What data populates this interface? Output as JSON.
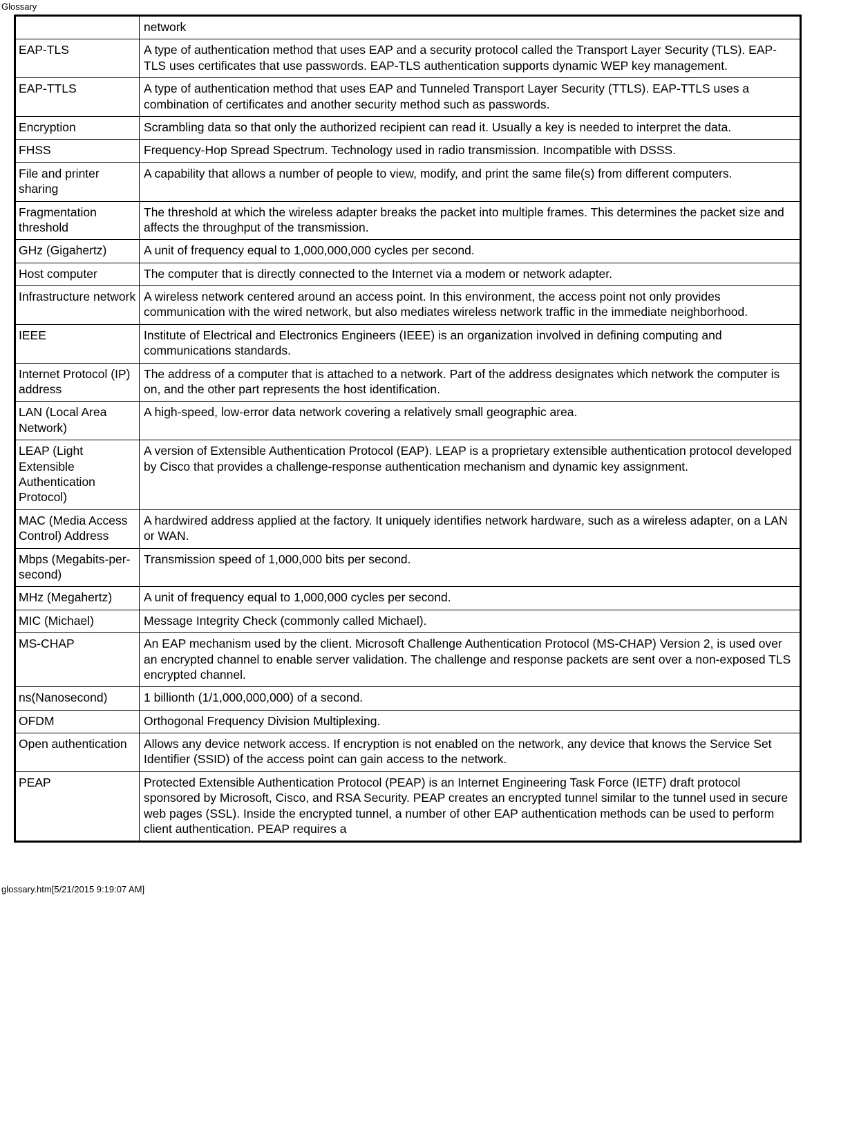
{
  "page": {
    "title": "Glossary",
    "footer": "glossary.htm[5/21/2015 9:19:07 AM]"
  },
  "table": {
    "header_row": {
      "term": "",
      "definition": "network"
    },
    "rows": [
      {
        "term": "EAP-TLS",
        "definition": "A type of authentication method that uses EAP and a security protocol called the Transport Layer Security (TLS). EAP-TLS uses certificates that use passwords. EAP-TLS authentication supports dynamic WEP key management."
      },
      {
        "term": "EAP-TTLS",
        "definition": "A type of authentication method that uses EAP and Tunneled Transport Layer Security (TTLS). EAP-TTLS uses a combination of certificates and another security method such as passwords."
      },
      {
        "term": "Encryption",
        "definition": "Scrambling data so that only the authorized recipient can read it. Usually a key is needed to interpret the data."
      },
      {
        "term": "FHSS",
        "definition": "Frequency-Hop Spread Spectrum. Technology used in radio transmission. Incompatible with DSSS."
      },
      {
        "term": "File and printer sharing",
        "definition": "A capability that allows a number of people to view, modify, and print the same file(s) from different computers."
      },
      {
        "term": "Fragmentation threshold",
        "definition": "The threshold at which the wireless adapter breaks the packet into multiple frames. This determines the packet size and affects the throughput of the transmission."
      },
      {
        "term": "GHz (Gigahertz)",
        "definition": "A unit of frequency equal to 1,000,000,000 cycles per second."
      },
      {
        "term": "Host computer",
        "definition": "The computer that is directly connected to the Internet via a modem or network adapter."
      },
      {
        "term": "Infrastructure network",
        "definition": "A wireless network centered around an access point. In this environment, the access point not only provides communication with the wired network, but also mediates wireless network traffic in the immediate neighborhood."
      },
      {
        "term": "IEEE",
        "definition": "Institute of Electrical and Electronics Engineers (IEEE) is an organization involved in defining computing and communications standards."
      },
      {
        "term": "Internet Protocol (IP) address",
        "definition": "The address of a computer that is attached to a network. Part of the address designates which network the computer is on, and the other part represents the host identification."
      },
      {
        "term": "LAN (Local Area Network)",
        "definition": "A high-speed, low-error data network covering a relatively small geographic area."
      },
      {
        "term": "LEAP (Light Extensible Authentication Protocol)",
        "definition": "A version of Extensible Authentication Protocol (EAP). LEAP is a proprietary extensible authentication protocol developed by Cisco that provides a challenge-response authentication mechanism and dynamic key assignment."
      },
      {
        "term": "MAC (Media Access Control) Address",
        "definition": "A hardwired address applied at the factory. It uniquely identifies network hardware, such as a wireless adapter, on a LAN or WAN."
      },
      {
        "term": "Mbps (Megabits-per-second)",
        "definition": "Transmission speed of 1,000,000 bits per second."
      },
      {
        "term": "MHz (Megahertz)",
        "definition": "A unit of frequency equal to 1,000,000 cycles per second."
      },
      {
        "term": "MIC (Michael)",
        "definition": "Message Integrity Check (commonly called Michael)."
      },
      {
        "term": "MS-CHAP",
        "definition": "An EAP mechanism used by the client. Microsoft Challenge Authentication Protocol (MS-CHAP) Version 2, is used over an encrypted channel to enable server validation. The challenge and response packets are sent over a non-exposed TLS encrypted channel."
      },
      {
        "term": "ns(Nanosecond)",
        "definition": "1 billionth (1/1,000,000,000) of a second."
      },
      {
        "term": "OFDM",
        "definition": "Orthogonal Frequency Division Multiplexing."
      },
      {
        "term": "Open authentication",
        "definition": "Allows any device network access. If encryption is not enabled on the network, any device that knows the Service Set Identifier (SSID) of the access point can gain access to the network."
      },
      {
        "term": "PEAP",
        "definition": "Protected Extensible Authentication Protocol (PEAP) is an Internet Engineering Task Force (IETF) draft protocol sponsored by Microsoft, Cisco, and RSA Security. PEAP creates an encrypted tunnel similar to the tunnel used in secure web pages (SSL). Inside the encrypted tunnel, a number of other EAP authentication methods can be used to perform client authentication. PEAP requires a"
      }
    ]
  }
}
